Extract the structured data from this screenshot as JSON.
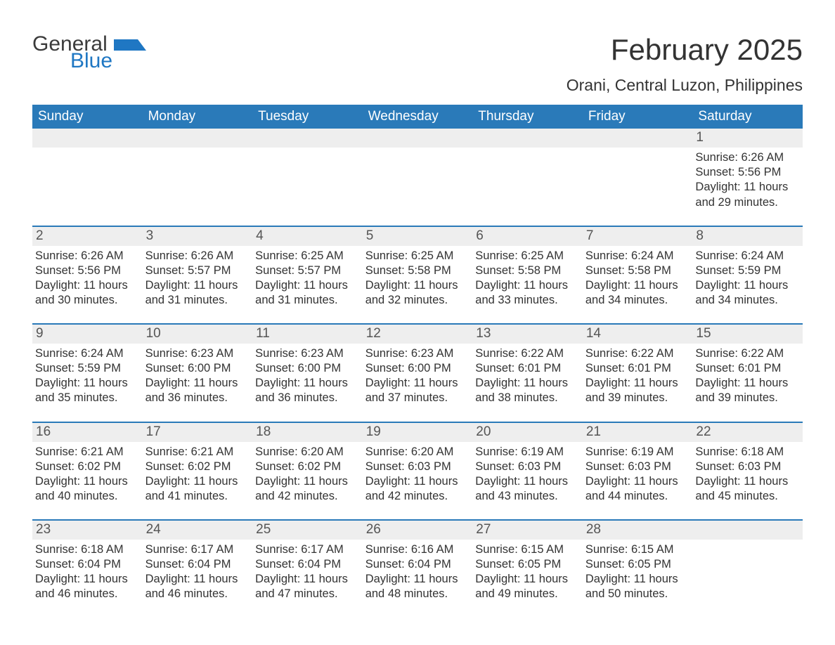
{
  "brand": {
    "word1": "General",
    "word2": "Blue",
    "flag_color": "#1f77c3",
    "word1_color": "#3b3b3b"
  },
  "title": {
    "month": "February 2025",
    "location": "Orani, Central Luzon, Philippines"
  },
  "colors": {
    "header_bg": "#2a7ab9",
    "daynum_bg": "#eeeeee",
    "week_rule": "#2a7ab9",
    "text": "#333333",
    "page_bg": "#ffffff"
  },
  "weekdays": [
    "Sunday",
    "Monday",
    "Tuesday",
    "Wednesday",
    "Thursday",
    "Friday",
    "Saturday"
  ],
  "layout": {
    "columns": 7,
    "rows": 5,
    "first_weekday_index": 6
  },
  "days": [
    {
      "n": 1,
      "sunrise": "6:26 AM",
      "sunset": "5:56 PM",
      "daylight": "11 hours and 29 minutes."
    },
    {
      "n": 2,
      "sunrise": "6:26 AM",
      "sunset": "5:56 PM",
      "daylight": "11 hours and 30 minutes."
    },
    {
      "n": 3,
      "sunrise": "6:26 AM",
      "sunset": "5:57 PM",
      "daylight": "11 hours and 31 minutes."
    },
    {
      "n": 4,
      "sunrise": "6:25 AM",
      "sunset": "5:57 PM",
      "daylight": "11 hours and 31 minutes."
    },
    {
      "n": 5,
      "sunrise": "6:25 AM",
      "sunset": "5:58 PM",
      "daylight": "11 hours and 32 minutes."
    },
    {
      "n": 6,
      "sunrise": "6:25 AM",
      "sunset": "5:58 PM",
      "daylight": "11 hours and 33 minutes."
    },
    {
      "n": 7,
      "sunrise": "6:24 AM",
      "sunset": "5:58 PM",
      "daylight": "11 hours and 34 minutes."
    },
    {
      "n": 8,
      "sunrise": "6:24 AM",
      "sunset": "5:59 PM",
      "daylight": "11 hours and 34 minutes."
    },
    {
      "n": 9,
      "sunrise": "6:24 AM",
      "sunset": "5:59 PM",
      "daylight": "11 hours and 35 minutes."
    },
    {
      "n": 10,
      "sunrise": "6:23 AM",
      "sunset": "6:00 PM",
      "daylight": "11 hours and 36 minutes."
    },
    {
      "n": 11,
      "sunrise": "6:23 AM",
      "sunset": "6:00 PM",
      "daylight": "11 hours and 36 minutes."
    },
    {
      "n": 12,
      "sunrise": "6:23 AM",
      "sunset": "6:00 PM",
      "daylight": "11 hours and 37 minutes."
    },
    {
      "n": 13,
      "sunrise": "6:22 AM",
      "sunset": "6:01 PM",
      "daylight": "11 hours and 38 minutes."
    },
    {
      "n": 14,
      "sunrise": "6:22 AM",
      "sunset": "6:01 PM",
      "daylight": "11 hours and 39 minutes."
    },
    {
      "n": 15,
      "sunrise": "6:22 AM",
      "sunset": "6:01 PM",
      "daylight": "11 hours and 39 minutes."
    },
    {
      "n": 16,
      "sunrise": "6:21 AM",
      "sunset": "6:02 PM",
      "daylight": "11 hours and 40 minutes."
    },
    {
      "n": 17,
      "sunrise": "6:21 AM",
      "sunset": "6:02 PM",
      "daylight": "11 hours and 41 minutes."
    },
    {
      "n": 18,
      "sunrise": "6:20 AM",
      "sunset": "6:02 PM",
      "daylight": "11 hours and 42 minutes."
    },
    {
      "n": 19,
      "sunrise": "6:20 AM",
      "sunset": "6:03 PM",
      "daylight": "11 hours and 42 minutes."
    },
    {
      "n": 20,
      "sunrise": "6:19 AM",
      "sunset": "6:03 PM",
      "daylight": "11 hours and 43 minutes."
    },
    {
      "n": 21,
      "sunrise": "6:19 AM",
      "sunset": "6:03 PM",
      "daylight": "11 hours and 44 minutes."
    },
    {
      "n": 22,
      "sunrise": "6:18 AM",
      "sunset": "6:03 PM",
      "daylight": "11 hours and 45 minutes."
    },
    {
      "n": 23,
      "sunrise": "6:18 AM",
      "sunset": "6:04 PM",
      "daylight": "11 hours and 46 minutes."
    },
    {
      "n": 24,
      "sunrise": "6:17 AM",
      "sunset": "6:04 PM",
      "daylight": "11 hours and 46 minutes."
    },
    {
      "n": 25,
      "sunrise": "6:17 AM",
      "sunset": "6:04 PM",
      "daylight": "11 hours and 47 minutes."
    },
    {
      "n": 26,
      "sunrise": "6:16 AM",
      "sunset": "6:04 PM",
      "daylight": "11 hours and 48 minutes."
    },
    {
      "n": 27,
      "sunrise": "6:15 AM",
      "sunset": "6:05 PM",
      "daylight": "11 hours and 49 minutes."
    },
    {
      "n": 28,
      "sunrise": "6:15 AM",
      "sunset": "6:05 PM",
      "daylight": "11 hours and 50 minutes."
    }
  ],
  "labels": {
    "sunrise": "Sunrise:",
    "sunset": "Sunset:",
    "daylight": "Daylight:"
  }
}
